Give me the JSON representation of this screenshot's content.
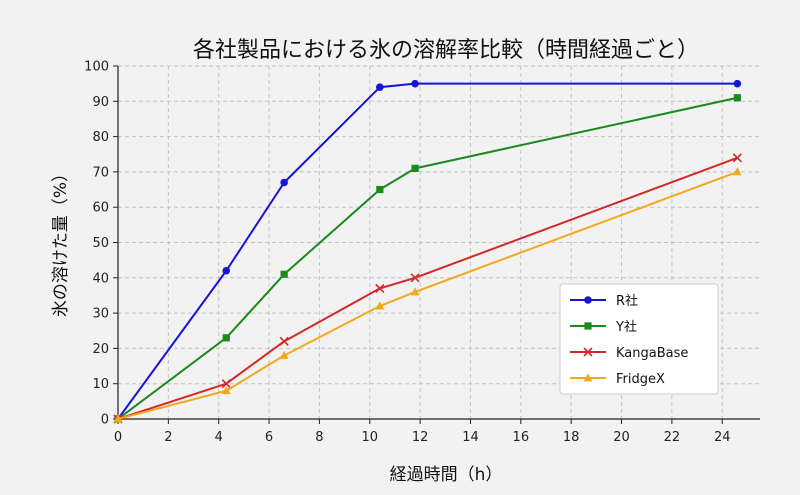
{
  "chart_data": {
    "type": "line",
    "title": "各社製品における氷の溶解率比較（時間経過ごと）",
    "xlabel": "経過時間（h）",
    "ylabel": "氷の溶けた量（%）",
    "xlim": [
      0,
      25.5
    ],
    "ylim": [
      0,
      100
    ],
    "xticks": [
      0,
      2,
      4,
      6,
      8,
      10,
      12,
      14,
      16,
      18,
      20,
      22,
      24
    ],
    "yticks": [
      0,
      10,
      20,
      30,
      40,
      50,
      60,
      70,
      80,
      90,
      100
    ],
    "grid": true,
    "legend_position": "lower-right",
    "series": [
      {
        "name": "R社",
        "color": "#1515d6",
        "marker": "circle",
        "x": [
          0,
          4.3,
          6.6,
          10.4,
          11.8,
          24.6
        ],
        "y": [
          0,
          42,
          67,
          94,
          95,
          95
        ]
      },
      {
        "name": "Y社",
        "color": "#1a8a1a",
        "marker": "square",
        "x": [
          0,
          4.3,
          6.6,
          10.4,
          11.8,
          24.6
        ],
        "y": [
          0,
          23,
          41,
          65,
          71,
          91
        ]
      },
      {
        "name": "KangaBase",
        "color": "#d62728",
        "marker": "x",
        "x": [
          0,
          4.3,
          6.6,
          10.4,
          11.8,
          24.6
        ],
        "y": [
          0,
          10,
          22,
          37,
          40,
          74
        ]
      },
      {
        "name": "FridgeX",
        "color": "#f2a81d",
        "marker": "triangle",
        "x": [
          0,
          4.3,
          6.6,
          10.4,
          11.8,
          24.6
        ],
        "y": [
          0,
          8,
          18,
          32,
          36,
          70
        ]
      }
    ]
  }
}
